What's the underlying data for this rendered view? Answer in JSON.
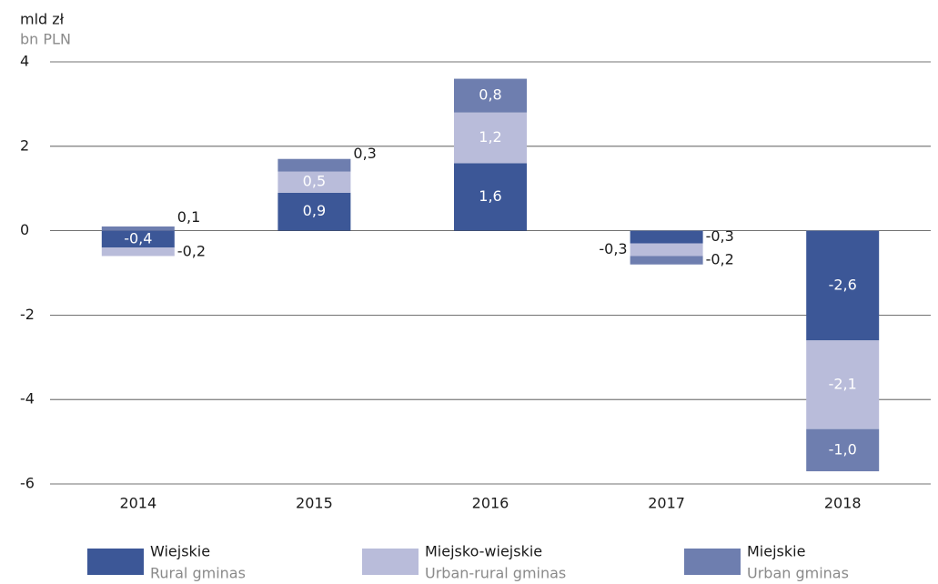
{
  "chart_data": {
    "type": "stacked_bar",
    "title": "mld zł",
    "subtitle": "bn PLN",
    "categories": [
      "2014",
      "2015",
      "2016",
      "2017",
      "2018"
    ],
    "series": [
      {
        "name": "Wiejskie",
        "name_en": "Rural gminas",
        "color": "#3c5797",
        "values": [
          -0.4,
          0.9,
          1.6,
          -0.3,
          -2.6
        ],
        "value_labels": [
          "-0,4",
          "0,9",
          "1,6",
          "-0,3",
          "-2,6"
        ]
      },
      {
        "name": "Miejsko-wiejskie",
        "name_en": "Urban-rural gminas",
        "color": "#b9bcda",
        "values": [
          -0.2,
          0.5,
          1.2,
          -0.3,
          -2.1
        ],
        "value_labels": [
          "-0,2",
          "0,5",
          "1,2",
          "-0,3",
          "-2,1"
        ]
      },
      {
        "name": "Miejskie",
        "name_en": "Urban gminas",
        "color": "#6e7eaf",
        "values": [
          0.1,
          0.3,
          0.8,
          -0.2,
          -1.0
        ],
        "value_labels": [
          "0,1",
          "0,3",
          "0,8",
          "-0,2",
          "-1,0"
        ]
      }
    ],
    "ylim": [
      -6,
      4
    ],
    "yticks": [
      4,
      2,
      0,
      -2,
      -4,
      -6
    ],
    "grid": true,
    "legend": "bottom"
  }
}
